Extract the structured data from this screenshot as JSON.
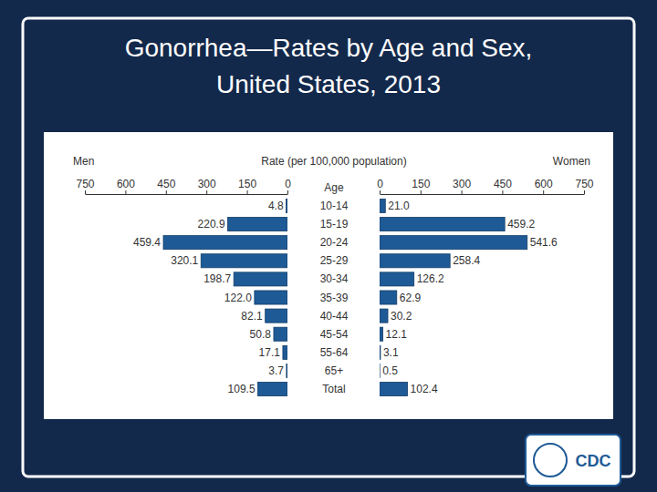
{
  "chart_data": {
    "type": "bar",
    "orientation": "horizontal",
    "title": "Gonorrhea—Rates by Age and Sex,",
    "subtitle": "United States, 2013",
    "xlabel": "Rate (per 100,000 population)",
    "ylabel": "Age",
    "categories": [
      "10-14",
      "15-19",
      "20-24",
      "25-29",
      "30-34",
      "35-39",
      "40-44",
      "45-54",
      "55-64",
      "65+",
      "Total"
    ],
    "series": [
      {
        "name": "Men",
        "color": "#1e5a96",
        "values": [
          4.8,
          220.9,
          459.4,
          320.1,
          198.7,
          122.0,
          82.1,
          50.8,
          17.1,
          3.7,
          109.5
        ],
        "value_labels": [
          "4.8",
          "220.9",
          "459.4",
          "320.1",
          "198.7",
          "122.0",
          "82.1",
          "50.8",
          "17.1",
          "3.7",
          "109.5"
        ]
      },
      {
        "name": "Women",
        "color": "#1e5a96",
        "values": [
          21.0,
          459.2,
          541.6,
          258.4,
          126.2,
          62.9,
          30.2,
          12.1,
          3.1,
          0.5,
          102.4
        ],
        "value_labels": [
          "21.0",
          "459.2",
          "541.6",
          "258.4",
          "126.2",
          "62.9",
          "30.2",
          "12.1",
          "3.1",
          "0.5",
          "102.4"
        ]
      }
    ],
    "xlim": [
      0,
      750
    ],
    "xticks": [
      0,
      150,
      300,
      450,
      600,
      750
    ],
    "data_labels": true,
    "grid": false,
    "annotations": [
      "CDC"
    ]
  }
}
